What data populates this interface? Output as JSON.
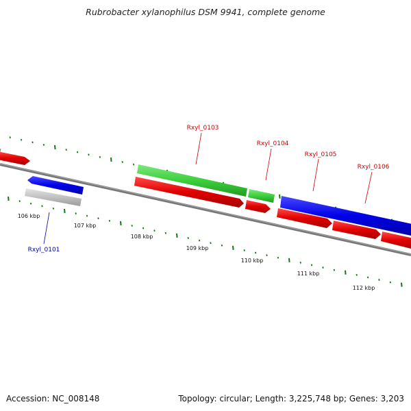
{
  "title": "Rubrobacter xylanophilus DSM 9941, complete genome",
  "footer": {
    "accession": "Accession: NC_008148",
    "topology": "Topology: circular; Length: 3,225,748 bp; Genes: 3,203"
  },
  "colors": {
    "plus_strand": "#0000e8",
    "minus_strand": "#e00000",
    "rna_feature": "#3ccf3c",
    "pseudo_feature": "#c0c0c0",
    "dark_feature": "#666666",
    "backbone": "#777777",
    "tick": "#127812",
    "label_blue": "#0000aa",
    "label_red": "#cc0000"
  },
  "scale_labels": [
    "106 kbp",
    "107 kbp",
    "108 kbp",
    "109 kbp",
    "110 kbp",
    "111 kbp",
    "112 kbp"
  ],
  "gene_labels": [
    {
      "name": "Rxyl_0101",
      "color": "blue"
    },
    {
      "name": "Rxyl_0103",
      "color": "red"
    },
    {
      "name": "Rxyl_0104",
      "color": "red"
    },
    {
      "name": "Rxyl_0105",
      "color": "red"
    },
    {
      "name": "Rxyl_0106",
      "color": "red"
    }
  ]
}
